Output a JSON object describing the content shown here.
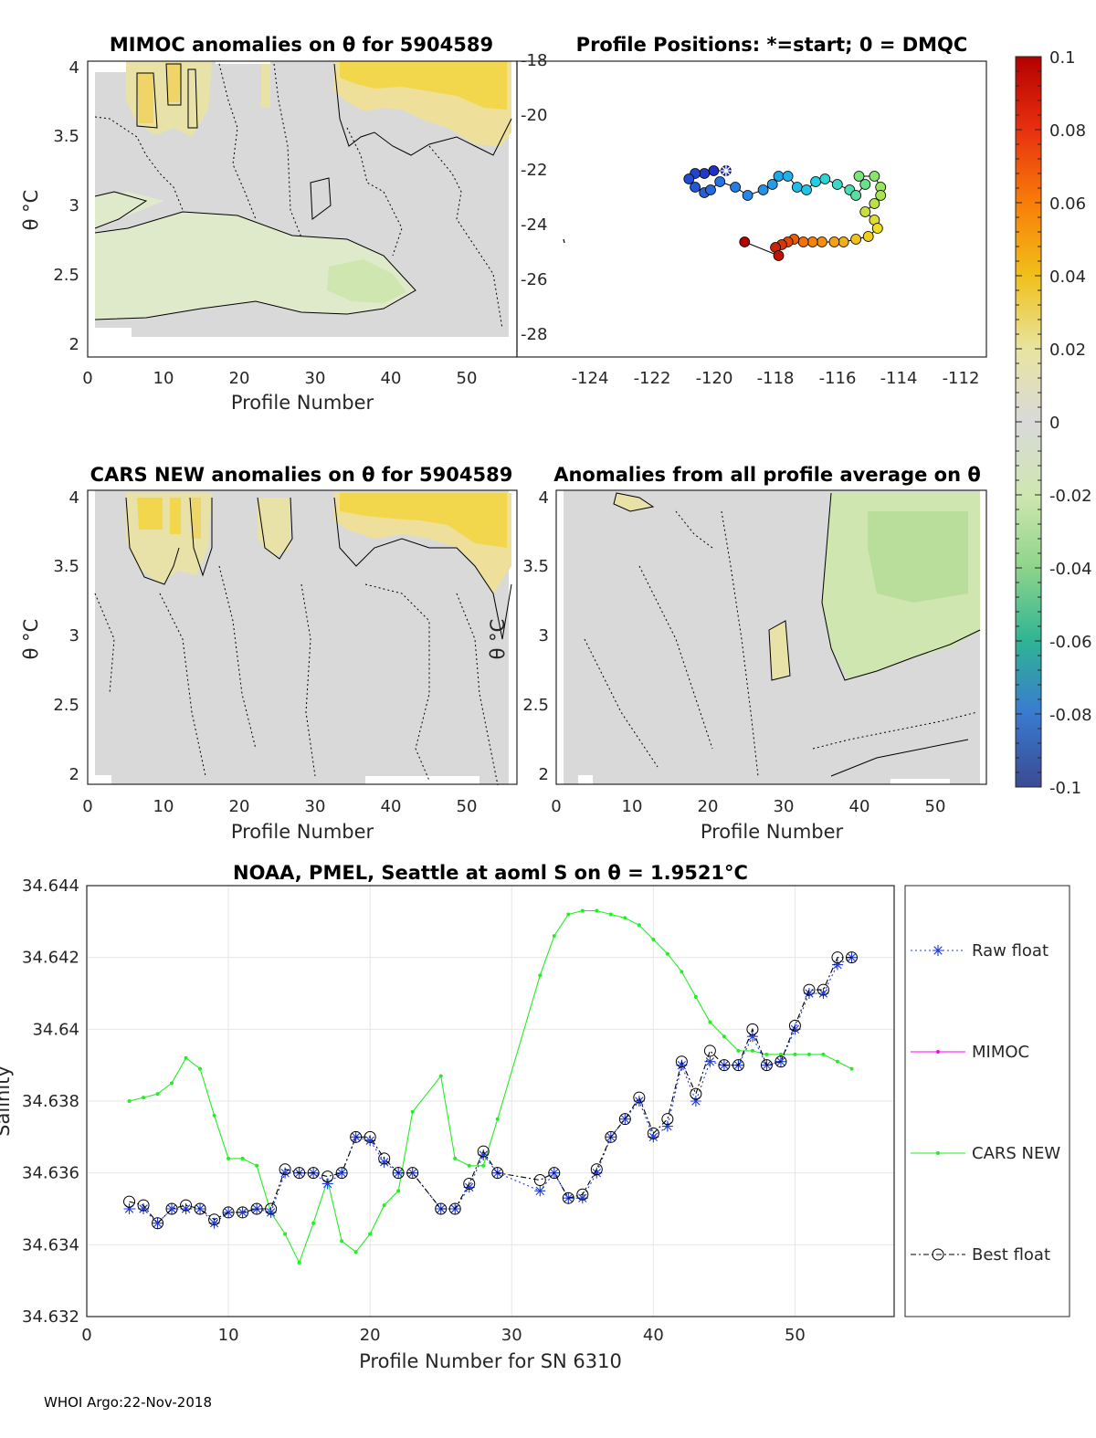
{
  "colors": {
    "neutral": "#d9d9d9",
    "light_green": "#dfeacb",
    "mid_green": "#cfe6b0",
    "yellow": "#f0d64a",
    "cars_line": "#22ee22",
    "mimoc_line": "#ff00ff",
    "raw_line": "#1f3bdb",
    "best_line": "#000000"
  },
  "panels": {
    "mimoc": {
      "title": "MIMOC anomalies on θ  for 5904589",
      "xlabel": "Profile Number",
      "ylabel": "θ °C",
      "xticks": [
        "0",
        "10",
        "20",
        "30",
        "40",
        "50"
      ],
      "yticks": [
        "2",
        "2.5",
        "3",
        "3.5",
        "4"
      ]
    },
    "positions": {
      "title": "Profile Positions: *=start; 0 = DMQC",
      "xticks": [
        "-124",
        "-122",
        "-120",
        "-118",
        "-116",
        "-114",
        "-112"
      ],
      "yticks": [
        "-18",
        "-20",
        "-22",
        "-24",
        "-26",
        "-28"
      ]
    },
    "cars": {
      "title": "CARS NEW anomalies on θ for 5904589",
      "xlabel": "Profile Number",
      "ylabel": "θ °C",
      "xticks": [
        "0",
        "10",
        "20",
        "30",
        "40",
        "50"
      ],
      "yticks": [
        "2",
        "2.5",
        "3",
        "3.5",
        "4"
      ]
    },
    "profile_avg": {
      "title": "Anomalies from all profile average on θ",
      "xlabel": "Profile Number",
      "ylabel": "θ °C",
      "xticks": [
        "0",
        "10",
        "20",
        "30",
        "40",
        "50"
      ],
      "yticks": [
        "2",
        "2.5",
        "3",
        "3.5",
        "4"
      ]
    }
  },
  "colorbar": {
    "ticks": [
      "0.1",
      "0.08",
      "0.06",
      "0.04",
      "0.02",
      "0",
      "-0.02",
      "-0.04",
      "-0.06",
      "-0.08",
      "-0.1"
    ]
  },
  "footer": "WHOI Argo:22-Nov-2018",
  "chart_data": [
    {
      "type": "scatter",
      "title": "Profile Positions: *=start; 0 = DMQC",
      "x_range": [
        -125,
        -111
      ],
      "y_range": [
        -29,
        -18
      ],
      "start": [
        -119.6,
        -22.0
      ],
      "points": [
        [
          -119.6,
          -22.0
        ],
        [
          -120.0,
          -22.0
        ],
        [
          -120.3,
          -22.1
        ],
        [
          -120.6,
          -22.1
        ],
        [
          -120.8,
          -22.3
        ],
        [
          -120.6,
          -22.6
        ],
        [
          -120.3,
          -22.8
        ],
        [
          -120.1,
          -22.7
        ],
        [
          -119.8,
          -22.4
        ],
        [
          -119.3,
          -22.6
        ],
        [
          -118.9,
          -22.9
        ],
        [
          -118.4,
          -22.7
        ],
        [
          -118.1,
          -22.5
        ],
        [
          -117.9,
          -22.2
        ],
        [
          -117.6,
          -22.2
        ],
        [
          -117.3,
          -22.6
        ],
        [
          -117.0,
          -22.7
        ],
        [
          -116.7,
          -22.4
        ],
        [
          -116.4,
          -22.3
        ],
        [
          -116.0,
          -22.5
        ],
        [
          -115.6,
          -22.7
        ],
        [
          -115.4,
          -22.9
        ],
        [
          -115.1,
          -22.5
        ],
        [
          -115.3,
          -22.2
        ],
        [
          -114.8,
          -22.2
        ],
        [
          -114.6,
          -22.6
        ],
        [
          -114.6,
          -22.9
        ],
        [
          -114.8,
          -23.2
        ],
        [
          -115.1,
          -23.5
        ],
        [
          -114.8,
          -23.8
        ],
        [
          -114.7,
          -24.1
        ],
        [
          -115.0,
          -24.4
        ],
        [
          -115.4,
          -24.5
        ],
        [
          -115.8,
          -24.6
        ],
        [
          -116.1,
          -24.6
        ],
        [
          -116.5,
          -24.6
        ],
        [
          -116.8,
          -24.6
        ],
        [
          -117.1,
          -24.6
        ],
        [
          -117.4,
          -24.5
        ],
        [
          -117.6,
          -24.6
        ],
        [
          -117.8,
          -24.7
        ],
        [
          -118.0,
          -24.8
        ],
        [
          -117.9,
          -25.1
        ],
        [
          -119.0,
          -24.6
        ]
      ]
    },
    {
      "type": "line",
      "title": "NOAA, PMEL, Seattle at aoml S on θ = 1.9521°C",
      "xlabel": "Profile Number for SN 6310",
      "ylabel": "Salinity",
      "xlim": [
        0,
        57
      ],
      "ylim": [
        34.632,
        34.644
      ],
      "xticks": [
        "0",
        "10",
        "20",
        "30",
        "40",
        "50"
      ],
      "yticks": [
        "34.632",
        "34.634",
        "34.636",
        "34.638",
        "34.64",
        "34.642",
        "34.644"
      ],
      "legend_position": "right outside",
      "series": [
        {
          "name": "Raw float",
          "x": [
            3,
            4,
            5,
            6,
            7,
            8,
            9,
            10,
            11,
            12,
            13,
            14,
            15,
            16,
            17,
            18,
            19,
            20,
            21,
            22,
            23,
            25,
            26,
            27,
            28,
            29,
            32,
            33,
            34,
            35,
            36,
            37,
            38,
            39,
            40,
            41,
            42,
            43,
            44,
            45,
            46,
            47,
            48,
            49,
            50,
            51,
            52,
            53,
            54
          ],
          "y": [
            34.635,
            34.635,
            34.6346,
            34.635,
            34.635,
            34.635,
            34.6346,
            34.6349,
            34.6349,
            34.635,
            34.6349,
            34.636,
            34.636,
            34.636,
            34.6357,
            34.636,
            34.637,
            34.6369,
            34.6363,
            34.636,
            34.636,
            34.635,
            34.635,
            34.6356,
            34.6365,
            34.636,
            34.6355,
            34.636,
            34.6353,
            34.6353,
            34.636,
            34.637,
            34.6375,
            34.638,
            34.637,
            34.6373,
            34.639,
            34.638,
            34.6391,
            34.639,
            34.639,
            34.6398,
            34.639,
            34.6391,
            34.64,
            34.641,
            34.641,
            34.6418,
            34.642
          ]
        },
        {
          "name": "MIMOC",
          "x": [],
          "y": []
        },
        {
          "name": "CARS NEW",
          "x": [
            3,
            4,
            5,
            6,
            7,
            8,
            9,
            10,
            11,
            12,
            13,
            14,
            15,
            16,
            17,
            18,
            19,
            20,
            21,
            22,
            23,
            25,
            26,
            27,
            28,
            29,
            32,
            33,
            34,
            35,
            36,
            37,
            38,
            39,
            40,
            41,
            42,
            43,
            44,
            45,
            46,
            47,
            48,
            49,
            50,
            51,
            52,
            53,
            54
          ],
          "y": [
            34.638,
            34.6381,
            34.6382,
            34.6385,
            34.6392,
            34.6389,
            34.6376,
            34.6364,
            34.6364,
            34.6362,
            34.6349,
            34.6343,
            34.6335,
            34.6346,
            34.6358,
            34.6341,
            34.6338,
            34.6343,
            34.6351,
            34.6355,
            34.6377,
            34.6387,
            34.6364,
            34.6362,
            34.6362,
            34.6375,
            34.6415,
            34.6426,
            34.6432,
            34.6433,
            34.6433,
            34.6432,
            34.6431,
            34.6429,
            34.6425,
            34.6421,
            34.6416,
            34.6409,
            34.6402,
            34.6398,
            34.6394,
            34.6394,
            34.6393,
            34.6393,
            34.6393,
            34.6393,
            34.6393,
            34.6391,
            34.6389
          ]
        },
        {
          "name": "Best float",
          "x": [
            3,
            4,
            5,
            6,
            7,
            8,
            9,
            10,
            11,
            12,
            13,
            14,
            15,
            16,
            17,
            18,
            19,
            20,
            21,
            22,
            23,
            25,
            26,
            27,
            28,
            29,
            32,
            33,
            34,
            35,
            36,
            37,
            38,
            39,
            40,
            41,
            42,
            43,
            44,
            45,
            46,
            47,
            48,
            49,
            50,
            51,
            52,
            53,
            54
          ],
          "y": [
            34.6352,
            34.6351,
            34.6346,
            34.635,
            34.6351,
            34.635,
            34.6347,
            34.6349,
            34.6349,
            34.635,
            34.635,
            34.6361,
            34.636,
            34.636,
            34.6359,
            34.636,
            34.637,
            34.637,
            34.6364,
            34.636,
            34.636,
            34.635,
            34.635,
            34.6357,
            34.6366,
            34.636,
            34.6358,
            34.636,
            34.6353,
            34.6354,
            34.6361,
            34.637,
            34.6375,
            34.6381,
            34.6371,
            34.6375,
            34.6391,
            34.6382,
            34.6394,
            34.639,
            34.639,
            34.64,
            34.639,
            34.6391,
            34.6401,
            34.6411,
            34.6411,
            34.642,
            34.642
          ]
        }
      ]
    }
  ]
}
